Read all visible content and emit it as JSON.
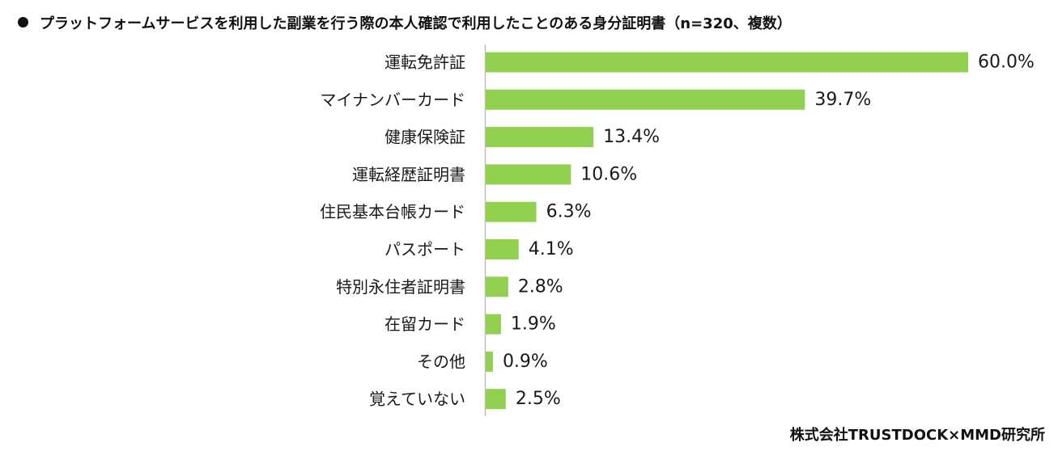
{
  "header": {
    "title": "プラットフォームサービスを利用した副業を行う際の本人確認で利用したことのある身分証明書（n=320、複数）"
  },
  "source": "株式会社TRUSTDOCK×MMD研究所",
  "colors": {
    "bar": "#92d050",
    "axis": "#bfbfbf",
    "text": "#1a1a1a"
  },
  "chart_data": {
    "type": "bar",
    "orientation": "horizontal",
    "title": "プラットフォームサービスを利用した副業を行う際の本人確認で利用したことのある身分証明書（n=320、複数）",
    "categories": [
      "運転免許証",
      "マイナンバーカード",
      "健康保険証",
      "運転経歴証明書",
      "住民基本台帳カード",
      "パスポート",
      "特別永住者証明書",
      "在留カード",
      "その他",
      "覚えていない"
    ],
    "values": [
      60.0,
      39.7,
      13.4,
      10.6,
      6.3,
      4.1,
      2.8,
      1.9,
      0.9,
      2.5
    ],
    "value_labels": [
      "60.0%",
      "39.7%",
      "13.4%",
      "10.6%",
      "6.3%",
      "4.1%",
      "2.8%",
      "1.9%",
      "0.9%",
      "2.5%"
    ],
    "unit": "%",
    "xlim": [
      0,
      60
    ],
    "grid": false,
    "legend": "none"
  }
}
